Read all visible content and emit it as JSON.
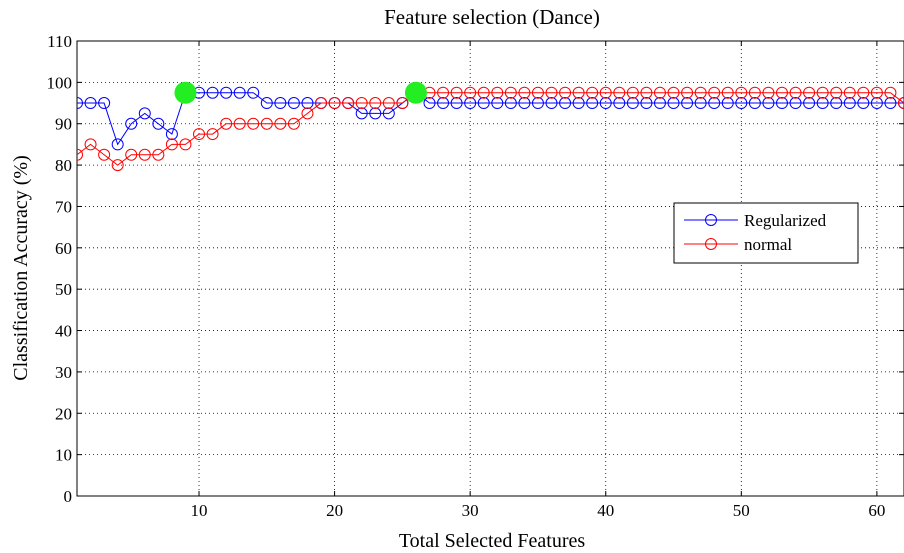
{
  "chart_data": {
    "type": "line",
    "title": "Feature selection (Dance)",
    "xlabel": "Total Selected Features",
    "ylabel": "Classification Accuracy (%)",
    "xlim": [
      1,
      62
    ],
    "ylim": [
      0,
      110
    ],
    "xticks": [
      10,
      20,
      30,
      40,
      50,
      60
    ],
    "yticks": [
      0,
      10,
      20,
      30,
      40,
      50,
      60,
      70,
      80,
      90,
      100,
      110
    ],
    "grid": true,
    "legend_position": "center-right",
    "x": [
      1,
      2,
      3,
      4,
      5,
      6,
      7,
      8,
      9,
      10,
      11,
      12,
      13,
      14,
      15,
      16,
      17,
      18,
      19,
      20,
      21,
      22,
      23,
      24,
      25,
      26,
      27,
      28,
      29,
      30,
      31,
      32,
      33,
      34,
      35,
      36,
      37,
      38,
      39,
      40,
      41,
      42,
      43,
      44,
      45,
      46,
      47,
      48,
      49,
      50,
      51,
      52,
      53,
      54,
      55,
      56,
      57,
      58,
      59,
      60,
      61,
      62
    ],
    "series": [
      {
        "name": "Regularized",
        "color": "#0000ff",
        "values": [
          95,
          95,
          95,
          85,
          90,
          92.5,
          90,
          87.5,
          97.5,
          97.5,
          97.5,
          97.5,
          97.5,
          97.5,
          95,
          95,
          95,
          95,
          95,
          95,
          95,
          92.5,
          92.5,
          92.5,
          95,
          97.5,
          95,
          95,
          95,
          95,
          95,
          95,
          95,
          95,
          95,
          95,
          95,
          95,
          95,
          95,
          95,
          95,
          95,
          95,
          95,
          95,
          95,
          95,
          95,
          95,
          95,
          95,
          95,
          95,
          95,
          95,
          95,
          95,
          95,
          95,
          95,
          95
        ]
      },
      {
        "name": "normal",
        "color": "#ff0000",
        "values": [
          82.5,
          85,
          82.5,
          80,
          82.5,
          82.5,
          82.5,
          85,
          85,
          87.5,
          87.5,
          90,
          90,
          90,
          90,
          90,
          90,
          92.5,
          95,
          95,
          95,
          95,
          95,
          95,
          95,
          97.5,
          97.5,
          97.5,
          97.5,
          97.5,
          97.5,
          97.5,
          97.5,
          97.5,
          97.5,
          97.5,
          97.5,
          97.5,
          97.5,
          97.5,
          97.5,
          97.5,
          97.5,
          97.5,
          97.5,
          97.5,
          97.5,
          97.5,
          97.5,
          97.5,
          97.5,
          97.5,
          97.5,
          97.5,
          97.5,
          97.5,
          97.5,
          97.5,
          97.5,
          97.5,
          97.5,
          95
        ]
      }
    ],
    "highlights": [
      {
        "x": 9,
        "y": 97.5,
        "color": "#22ee22"
      },
      {
        "x": 26,
        "y": 97.5,
        "color": "#22ee22"
      }
    ]
  }
}
